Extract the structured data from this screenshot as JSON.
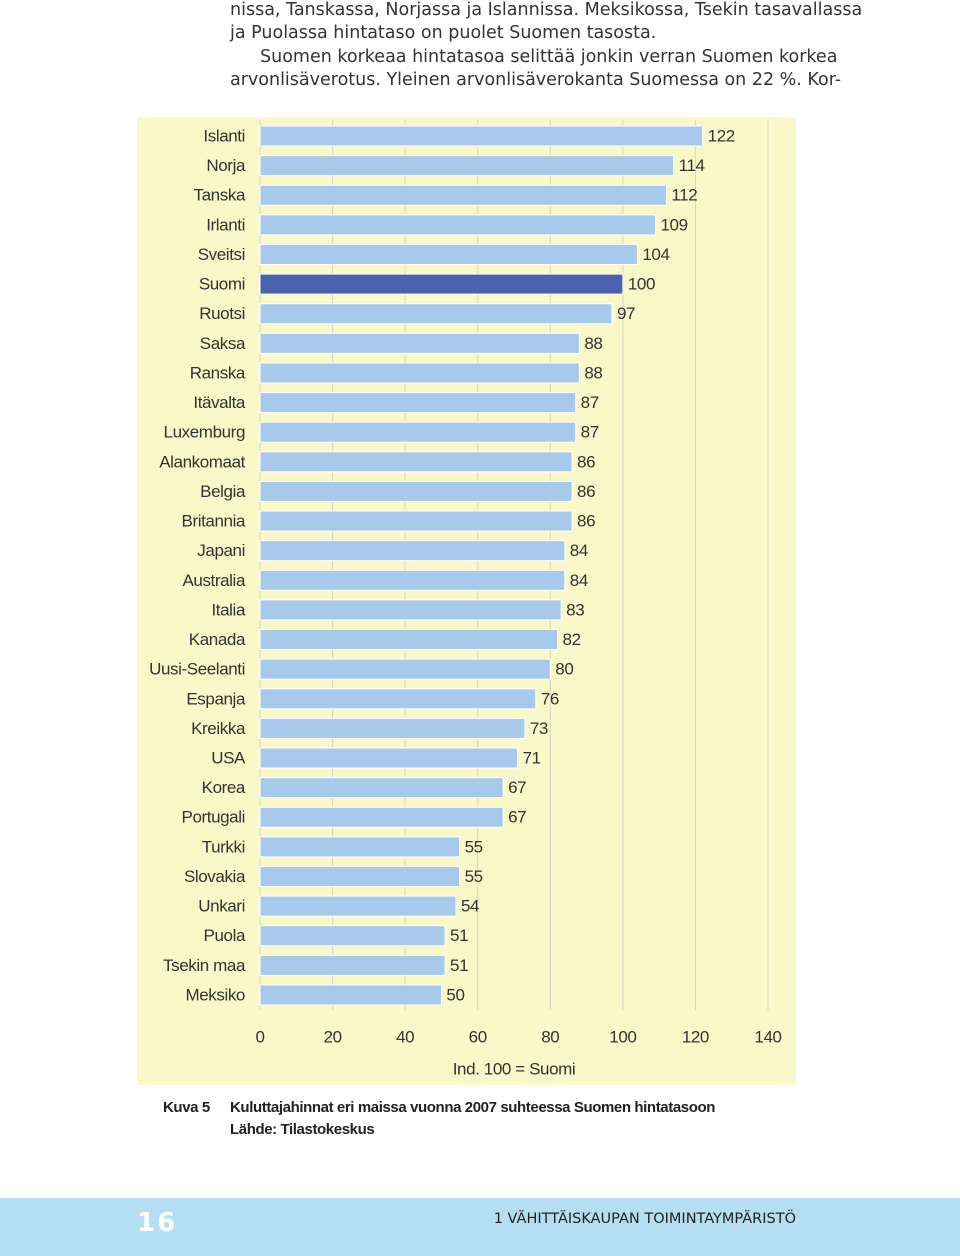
{
  "text": [
    "nissa, Tanskassa, Norjassa ja Islannissa. Meksikossa, Tsekin tasavallassa",
    "ja Puolassa hintataso on puolet Suomen tasosta.",
    "Suomen korkeaa hintatasoa selittää jonkin verran Suomen korkea",
    "arvonlisäverotus. Yleinen arvonlisäverokanta Suomessa on 22 %. Kor-"
  ],
  "chart_data": {
    "type": "hbar",
    "categories": [
      "Islanti",
      "Norja",
      "Tanska",
      "Irlanti",
      "Sveitsi",
      "Suomi",
      "Ruotsi",
      "Saksa",
      "Ranska",
      "Itävalta",
      "Luxemburg",
      "Alankomaat",
      "Belgia",
      "Britannia",
      "Japani",
      "Australia",
      "Italia",
      "Kanada",
      "Uusi-Seelanti",
      "Espanja",
      "Kreikka",
      "USA",
      "Korea",
      "Portugali",
      "Turkki",
      "Slovakia",
      "Unkari",
      "Puola",
      "Tsekin maa",
      "Meksiko"
    ],
    "values": [
      122,
      114,
      112,
      109,
      104,
      100,
      97,
      88,
      88,
      87,
      87,
      86,
      86,
      86,
      84,
      84,
      83,
      82,
      80,
      76,
      73,
      71,
      67,
      67,
      55,
      55,
      54,
      51,
      51,
      50
    ],
    "colors": [
      "#a7c9ec",
      "#a7c9ec",
      "#a7c9ec",
      "#a7c9ec",
      "#a7c9ec",
      "#4b63ae",
      "#a7c9ec",
      "#a7c9ec",
      "#a7c9ec",
      "#a7c9ec",
      "#a7c9ec",
      "#a7c9ec",
      "#a7c9ec",
      "#a7c9ec",
      "#a7c9ec",
      "#a7c9ec",
      "#a7c9ec",
      "#a7c9ec",
      "#a7c9ec",
      "#a7c9ec",
      "#a7c9ec",
      "#a7c9ec",
      "#a7c9ec",
      "#a7c9ec",
      "#a7c9ec",
      "#a7c9ec",
      "#a7c9ec",
      "#a7c9ec",
      "#a7c9ec",
      "#a7c9ec"
    ],
    "xlabel": "Ind. 100 = Suomi",
    "xlim": [
      0,
      140
    ],
    "xticks": [
      0,
      20,
      40,
      60,
      80,
      100,
      120,
      140
    ],
    "grid": true
  },
  "caption": {
    "label": "Kuva 5",
    "title": "Kuluttajahinnat eri maissa vuonna 2007 suhteessa Suomen hintatasoon",
    "source": "Lähde: Tilastokeskus"
  },
  "footer": {
    "page": "16",
    "chapter": "1  VÄHITTÄISKAUPAN TOIMINTAYMPÄRISTÖ"
  }
}
